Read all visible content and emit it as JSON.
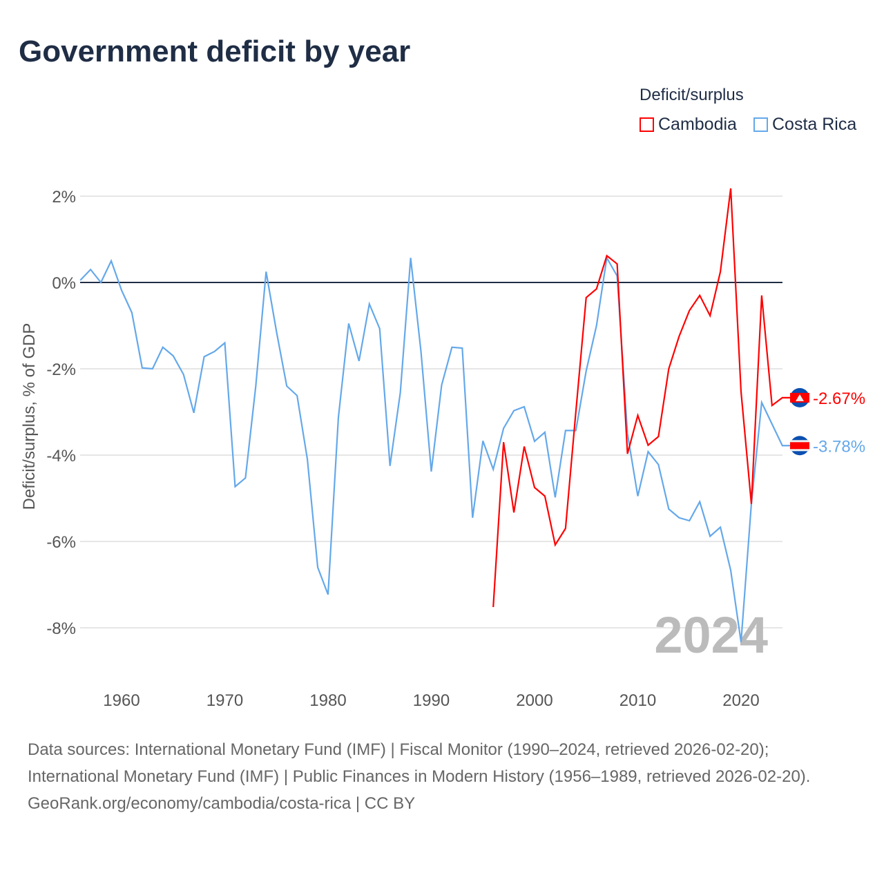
{
  "title": "Government deficit by year",
  "legend": {
    "title": "Deficit/surplus",
    "items": [
      {
        "label": "Cambodia",
        "color": "#ff0000"
      },
      {
        "label": "Costa Rica",
        "color": "#64a8ea"
      }
    ]
  },
  "big_year": "2024",
  "footer": {
    "line1": "Data sources: International Monetary Fund (IMF) | Fiscal Monitor (1990–2024, retrieved 2026-02-20);",
    "line2": "International Monetary Fund (IMF) | Public Finances in Modern History (1956–1989, retrieved 2026-02-20).",
    "line3": "GeoRank.org/economy/cambodia/costa-rica | CC BY"
  },
  "chart_data": {
    "type": "line",
    "title": "Government deficit by year",
    "xlabel": "",
    "ylabel": "Deficit/surplus, % of GDP",
    "xlim": [
      1956,
      2024
    ],
    "ylim": [
      -9,
      3
    ],
    "xticks": [
      1960,
      1970,
      1980,
      1990,
      2000,
      2010,
      2020
    ],
    "yticks": [
      {
        "v": 2,
        "label": "2%"
      },
      {
        "v": 0,
        "label": "0%"
      },
      {
        "v": -2,
        "label": "-2%"
      },
      {
        "v": -4,
        "label": "-4%"
      },
      {
        "v": -6,
        "label": "-6%"
      },
      {
        "v": -8,
        "label": "-8%"
      }
    ],
    "series": [
      {
        "name": "Costa Rica",
        "color": "#64a8ea",
        "end_label": "-3.78%",
        "start": 1956,
        "values": [
          0.05,
          0.3,
          0.0,
          0.5,
          -0.18,
          -0.7,
          -1.98,
          -2.0,
          -1.5,
          -1.7,
          -2.13,
          -3.02,
          -1.72,
          -1.6,
          -1.4,
          -4.73,
          -4.53,
          -2.4,
          0.25,
          -1.13,
          -2.4,
          -2.62,
          -4.1,
          -6.6,
          -7.23,
          -3.13,
          -0.95,
          -1.82,
          -0.5,
          -1.07,
          -4.25,
          -2.55,
          0.57,
          -1.6,
          -4.38,
          -2.38,
          -1.5,
          -1.52,
          -5.45,
          -3.67,
          -4.33,
          -3.38,
          -2.97,
          -2.88,
          -3.68,
          -3.47,
          -4.98,
          -3.43,
          -3.43,
          -2.05,
          -1.0,
          0.57,
          0.15,
          -3.5,
          -4.95,
          -3.92,
          -4.22,
          -5.25,
          -5.45,
          -5.52,
          -5.08,
          -5.88,
          -5.67,
          -6.67,
          -8.33,
          -5.13,
          -2.78,
          -3.28,
          -3.78
        ]
      },
      {
        "name": "Cambodia",
        "color": "#ff0000",
        "end_label": "-2.67%",
        "start": 1996,
        "values": [
          -7.52,
          -3.7,
          -5.33,
          -3.8,
          -4.75,
          -4.95,
          -6.08,
          -5.7,
          -3.0,
          -0.35,
          -0.15,
          0.62,
          0.43,
          -3.97,
          -3.08,
          -3.77,
          -3.57,
          -2.0,
          -1.25,
          -0.65,
          -0.3,
          -0.77,
          0.25,
          2.18,
          -2.53,
          -5.13,
          -0.3,
          -2.85,
          -2.67
        ]
      }
    ]
  }
}
